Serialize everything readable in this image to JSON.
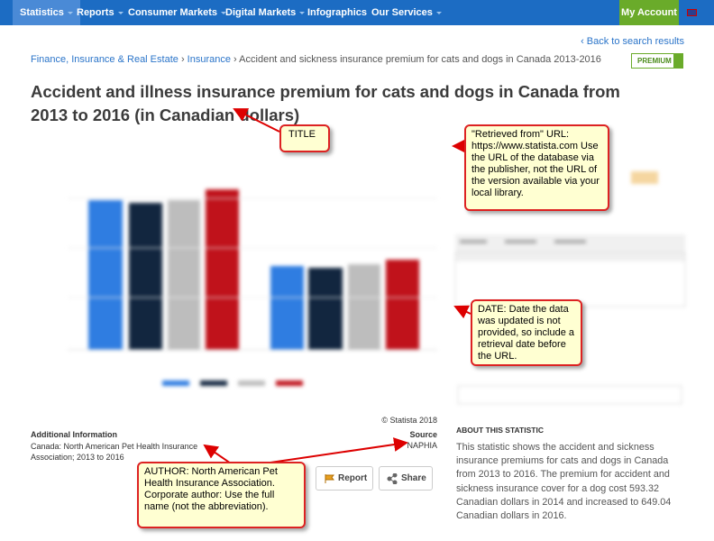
{
  "nav": {
    "items": [
      "Statistics",
      "Reports",
      "Consumer Markets",
      "Digital Markets",
      "Infographics",
      "Our Services"
    ],
    "account": "My Account"
  },
  "back_link": "‹ Back to search results",
  "breadcrumb": {
    "items": [
      "Finance, Insurance & Real Estate",
      "Insurance",
      "Accident and sickness insurance premium for cats and dogs in Canada 2013-2016"
    ],
    "separator": "›"
  },
  "premium_badge": "PREMIUM",
  "title": "Accident and illness insurance premium for cats and dogs in Canada from 2013 to 2016 (in Canadian dollars)",
  "chart": {
    "copyright": "© Statista 2018"
  },
  "additional_info": {
    "heading": "Additional Information",
    "text": "Canada: North American Pet Health Insurance Association; 2013 to 2016"
  },
  "source": {
    "heading": "Source",
    "text": "NAPHIA"
  },
  "buttons": [
    "Report",
    "Share"
  ],
  "about": {
    "heading": "ABOUT THIS STATISTIC",
    "text": "This statistic shows the accident and sickness insurance premiums for cats and dogs in Canada from 2013 to 2016. The premium for accident and sickness insurance cover for a dog cost 593.32 Canadian dollars in 2014 and increased to 649.04 Canadian dollars in 2016."
  },
  "annotations": [
    "TITLE",
    "\"Retrieved from\" URL: https://www.statista.com Use the URL of the database via the publisher, not the URL of the version available via your local library.",
    "DATE: Date the data was updated is not provided, so include a retrieval date before the URL.",
    "AUTHOR: North American Pet Health Insurance Association. Corporate author: Use the full name (not the abbreviation)."
  ]
}
